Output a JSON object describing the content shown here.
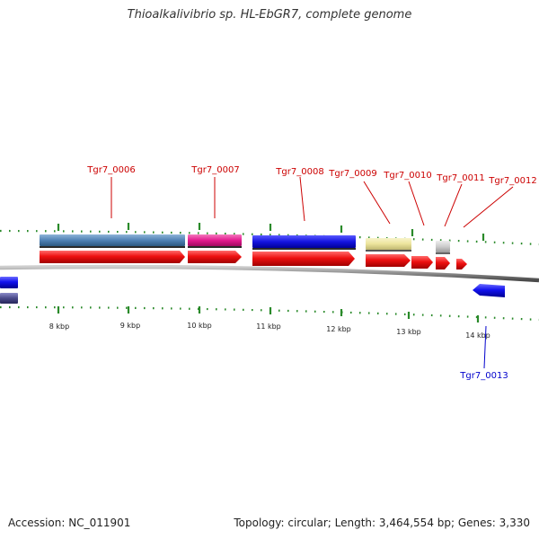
{
  "title": "Thioalkalivibrio sp. HL-EbGR7, complete genome",
  "footer": {
    "accession": "Accession: NC_011901",
    "topology": "Topology: circular; Length: 3,464,554 bp; Genes: 3,330"
  },
  "scale_labels": [
    "8 kbp",
    "9 kbp",
    "10 kbp",
    "11 kbp",
    "12 kbp",
    "13 kbp",
    "14 kbp"
  ],
  "gene_labels_top": [
    "Tgr7_0006",
    "Tgr7_0007",
    "Tgr7_0008",
    "Tgr7_0009",
    "Tgr7_0010",
    "Tgr7_0011",
    "Tgr7_0012"
  ],
  "gene_labels_bottom": [
    "Tgr7_0013"
  ],
  "colors": {
    "forward_gene": "#ee1111",
    "reverse_gene": "#1111ee",
    "backbone": "#888888",
    "tick": "#2a8a2a",
    "label_top": "#cc0000",
    "label_bottom": "#0000cc",
    "cog_steel_blue": "#4f81b4",
    "cog_magenta": "#e21a8e",
    "cog_blue": "#1414e0",
    "cog_khaki": "#ece49c",
    "cog_grey": "#cccccc",
    "cog_slate": "#4a4a8a"
  }
}
